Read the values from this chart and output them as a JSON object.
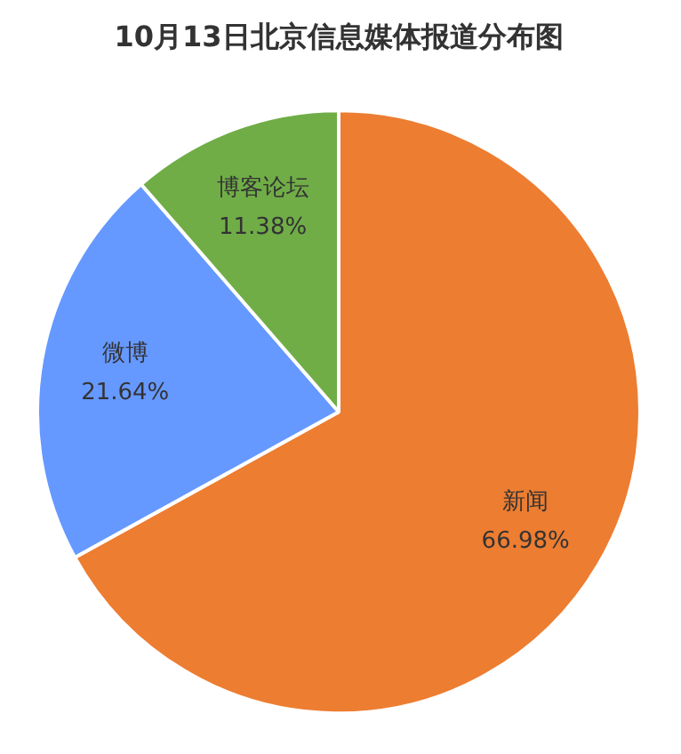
{
  "chart_data": {
    "type": "pie",
    "title": "10月13日北京信息媒体报道分布图",
    "categories": [
      "新闻",
      "微博",
      "博客论坛"
    ],
    "values": [
      66.98,
      21.64,
      11.38
    ],
    "colors": [
      "#ed7d31",
      "#6699ff",
      "#70ad47"
    ],
    "value_labels": [
      "66.98%",
      "21.64%",
      "11.38%"
    ],
    "legend": false
  }
}
